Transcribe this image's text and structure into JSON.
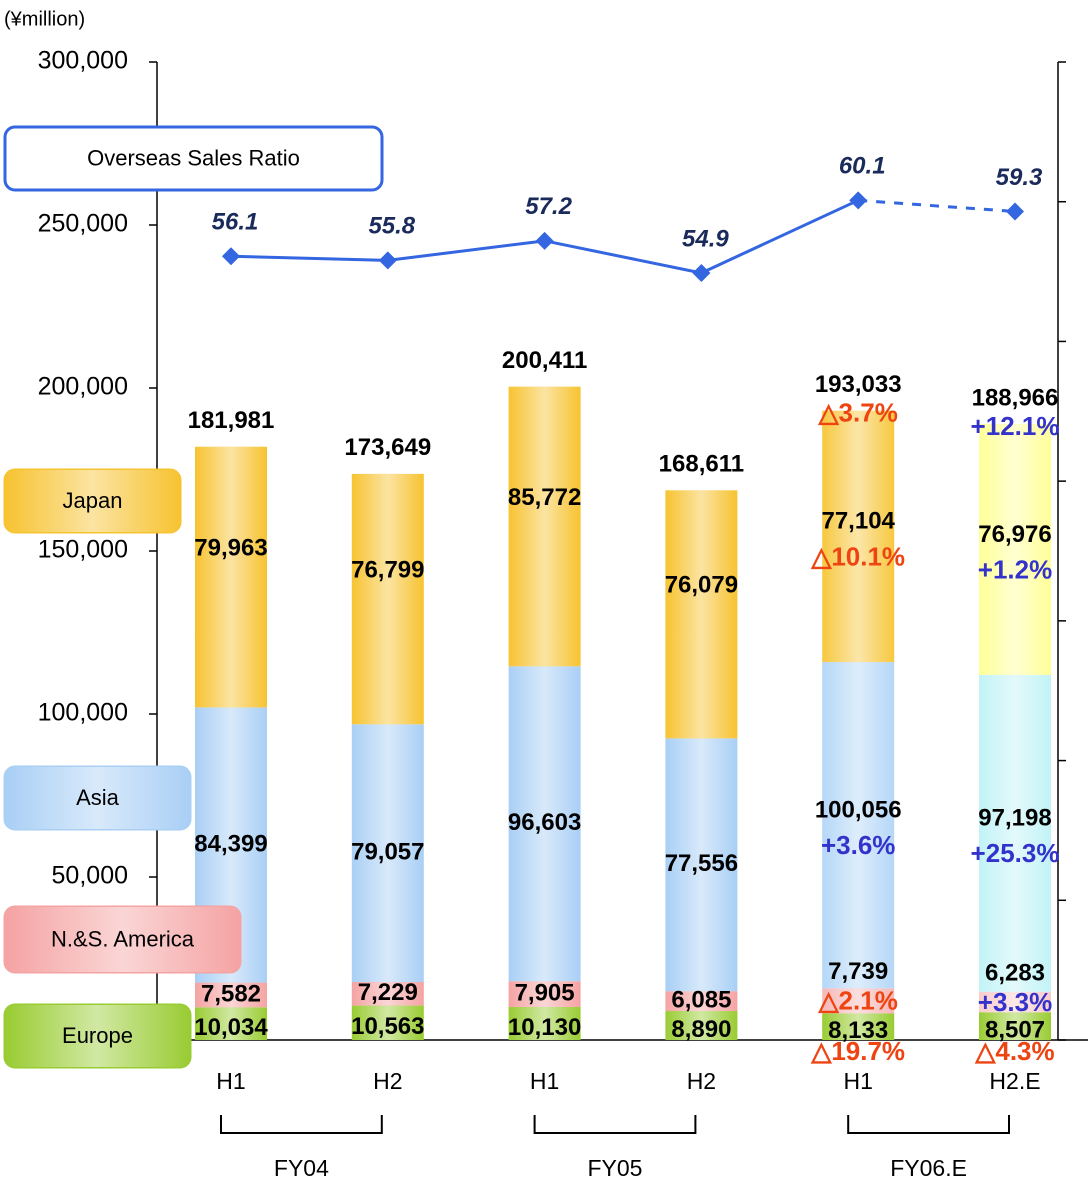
{
  "chart_data": {
    "type": "bar",
    "unit": "(¥million)",
    "categories": [
      "H1",
      "H2",
      "H1",
      "H2",
      "H1",
      "H2.E"
    ],
    "groups": [
      {
        "name": "FY04",
        "start": 0,
        "end": 1
      },
      {
        "name": "FY05",
        "start": 2,
        "end": 3
      },
      {
        "name": "FY06.E",
        "start": 4,
        "end": 5
      }
    ],
    "ylim": [
      0,
      300000
    ],
    "yticks": [
      {
        "value": 50000,
        "label": "50,000"
      },
      {
        "value": 100000,
        "label": "100,000"
      },
      {
        "value": 150000,
        "label": "150,000"
      },
      {
        "value": 200000,
        "label": "200,000"
      },
      {
        "value": 250000,
        "label": "250,000"
      },
      {
        "value": 300000,
        "label": "300,000"
      }
    ],
    "y2lim": [
      0,
      70
    ],
    "y2ticks": [
      0,
      10,
      20,
      30,
      40,
      50,
      60,
      70
    ],
    "up_color": "#3333cc",
    "down_color": "#ee4411",
    "series": [
      {
        "name": "Europe",
        "colors": [
          "#99cc33",
          "#99cc33",
          "#99cc33",
          "#99cc33",
          "#99cc33",
          "#99cc33"
        ],
        "values": [
          10034,
          10563,
          10130,
          8890,
          8133,
          8507
        ],
        "value_labels": [
          "10,034",
          "10,563",
          "10,130",
          "8,890",
          "8,133",
          "8,507"
        ],
        "changes": [
          null,
          null,
          null,
          null,
          "△19.7%",
          "△4.3%"
        ]
      },
      {
        "name": "N.&S. America",
        "colors": [
          "#f5a3a3",
          "#f5a3a3",
          "#f5a3a3",
          "#f5a3a3",
          "#f5b8b8",
          "#f9cccc"
        ],
        "values": [
          7582,
          7229,
          7905,
          6085,
          7739,
          6283
        ],
        "value_labels": [
          "7,582",
          "7,229",
          "7,905",
          "6,085",
          "7,739",
          "6,283"
        ],
        "changes": [
          null,
          null,
          null,
          null,
          "△2.1%",
          "+3.3%"
        ]
      },
      {
        "name": "Asia",
        "colors": [
          "#a9cff5",
          "#a9cff5",
          "#a9cff5",
          "#a9cff5",
          "#b5d7f7",
          "#c2f3f7"
        ],
        "values": [
          84399,
          79057,
          96603,
          77556,
          100056,
          97198
        ],
        "value_labels": [
          "84,399",
          "79,057",
          "96,603",
          "77,556",
          "100,056",
          "97,198"
        ],
        "changes": [
          null,
          null,
          null,
          null,
          "+3.6%",
          "+25.3%"
        ]
      },
      {
        "name": "Japan",
        "colors": [
          "#f7c331",
          "#f7c331",
          "#f7c331",
          "#f7c331",
          "#f7c840",
          "#ffff99"
        ],
        "values": [
          79963,
          76799,
          85772,
          76079,
          77104,
          76976
        ],
        "value_labels": [
          "79,963",
          "76,799",
          "85,772",
          "76,079",
          "77,104",
          "76,976"
        ],
        "changes": [
          null,
          null,
          null,
          null,
          "△10.1%",
          "+1.2%"
        ]
      }
    ],
    "totals": [
      181981,
      173649,
      200411,
      168611,
      193033,
      188966
    ],
    "total_labels": [
      "181,981",
      "173,649",
      "200,411",
      "168,611",
      "193,033",
      "188,966"
    ],
    "total_changes": [
      null,
      null,
      null,
      null,
      "△3.7%",
      "+12.1%"
    ],
    "line": {
      "name": "Overseas Sales Ratio",
      "axis": "y2",
      "color": "#3366e0",
      "values": [
        56.1,
        55.8,
        57.2,
        54.9,
        60.1,
        59.3
      ],
      "line_styles": [
        "solid",
        "solid",
        "solid",
        "solid",
        "dashed"
      ]
    }
  }
}
